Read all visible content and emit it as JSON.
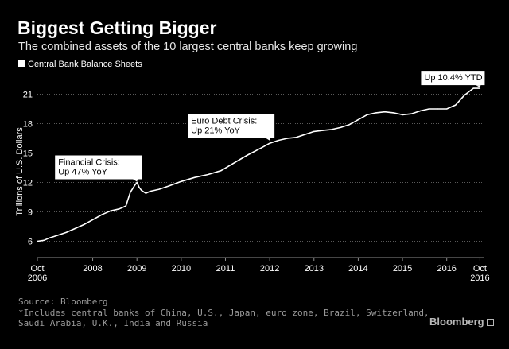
{
  "header": {
    "title": "Biggest Getting Bigger",
    "subtitle": "The combined assets of the 10 largest central banks keep growing"
  },
  "legend": {
    "label": "Central Bank Balance Sheets"
  },
  "footer": {
    "source": "Source: Bloomberg",
    "note": "*Includes central banks of China, U.S., Japan, euro zone, Brazil, Switzerland, Saudi Arabia, U.K., India and Russia",
    "brand": "Bloomberg"
  },
  "colors": {
    "background": "#000000",
    "line": "#ffffff",
    "annotation_box": "#ffffff",
    "muted": "#9a9a9a"
  },
  "chart_data": {
    "type": "line",
    "title": "Biggest Getting Bigger",
    "subtitle": "The combined assets of the 10 largest central banks keep growing",
    "xlabel": "",
    "ylabel": "Trillions of U.S. Dollars",
    "xlim": [
      2006.75,
      2016.85
    ],
    "ylim": [
      4.5,
      22.5
    ],
    "yticks": [
      6,
      9,
      12,
      15,
      18,
      21
    ],
    "xticks": [
      {
        "value": 2006.75,
        "line1": "Oct",
        "line2": "2006"
      },
      {
        "value": 2008.0,
        "line1": "2008",
        "line2": ""
      },
      {
        "value": 2009.0,
        "line1": "2009",
        "line2": ""
      },
      {
        "value": 2010.0,
        "line1": "2010",
        "line2": ""
      },
      {
        "value": 2011.0,
        "line1": "2011",
        "line2": ""
      },
      {
        "value": 2012.0,
        "line1": "2012",
        "line2": ""
      },
      {
        "value": 2013.0,
        "line1": "2013",
        "line2": ""
      },
      {
        "value": 2014.0,
        "line1": "2014",
        "line2": ""
      },
      {
        "value": 2015.0,
        "line1": "2015",
        "line2": ""
      },
      {
        "value": 2016.0,
        "line1": "2016",
        "line2": ""
      },
      {
        "value": 2016.75,
        "line1": "Oct",
        "line2": "2016"
      }
    ],
    "grid": "horizontal",
    "legend_position": "top-left",
    "series": [
      {
        "name": "Central Bank Balance Sheets",
        "x": [
          2006.75,
          2006.9,
          2007.0,
          2007.2,
          2007.4,
          2007.6,
          2007.8,
          2008.0,
          2008.2,
          2008.4,
          2008.6,
          2008.75,
          2008.85,
          2008.95,
          2009.0,
          2009.05,
          2009.1,
          2009.2,
          2009.3,
          2009.5,
          2009.7,
          2010.0,
          2010.3,
          2010.6,
          2010.9,
          2011.2,
          2011.5,
          2011.8,
          2012.0,
          2012.2,
          2012.4,
          2012.6,
          2012.8,
          2013.0,
          2013.2,
          2013.4,
          2013.6,
          2013.8,
          2014.0,
          2014.2,
          2014.4,
          2014.6,
          2014.8,
          2015.0,
          2015.2,
          2015.4,
          2015.6,
          2015.8,
          2016.0,
          2016.2,
          2016.4,
          2016.6,
          2016.75
        ],
        "values": [
          6.0,
          6.1,
          6.3,
          6.6,
          6.9,
          7.3,
          7.7,
          8.2,
          8.7,
          9.1,
          9.3,
          9.6,
          11.0,
          11.7,
          12.0,
          11.5,
          11.2,
          10.9,
          11.1,
          11.3,
          11.6,
          12.1,
          12.5,
          12.8,
          13.2,
          14.0,
          14.8,
          15.5,
          16.0,
          16.3,
          16.5,
          16.6,
          16.9,
          17.2,
          17.3,
          17.4,
          17.6,
          17.9,
          18.4,
          18.9,
          19.1,
          19.2,
          19.1,
          18.9,
          19.0,
          19.3,
          19.5,
          19.5,
          19.5,
          19.9,
          20.9,
          21.6,
          21.6
        ]
      }
    ],
    "annotations": [
      {
        "line1": "Financial Crisis:",
        "line2": "Up 47% YoY",
        "x": 2009.0,
        "y": 12.0
      },
      {
        "line1": "Euro Debt Crisis:",
        "line2": "Up 21% YoY",
        "x": 2012.0,
        "y": 16.2
      },
      {
        "line1": "Up 10.4% YTD",
        "line2": "",
        "x": 2016.75,
        "y": 21.6
      }
    ]
  }
}
